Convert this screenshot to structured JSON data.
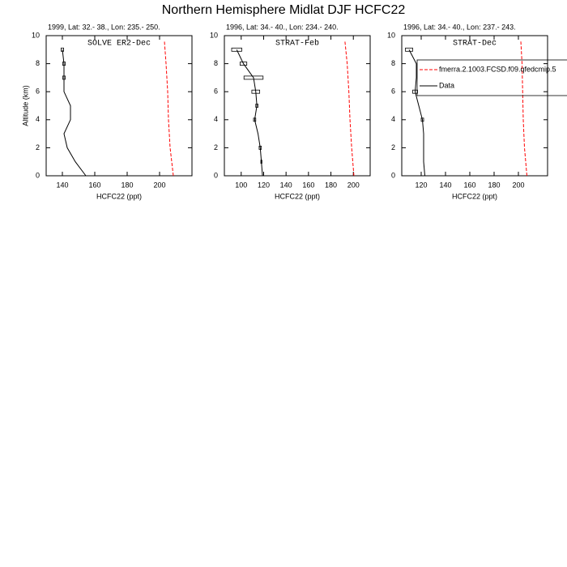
{
  "title": "Northern Hemisphere Midlat DJF HCFC22",
  "chart_data": [
    {
      "type": "profile",
      "subtitle": "1999, Lat: 32.- 38., Lon: 235.- 250.",
      "annotation": "SOLVE ER2-Dec",
      "xlabel": "HCFC22 (ppt)",
      "ylabel": "Altitude (km)",
      "xlim": [
        130,
        220
      ],
      "xticks": [
        140,
        160,
        180,
        200
      ],
      "ylim": [
        0,
        10
      ],
      "yticks": [
        0,
        2,
        4,
        6,
        8,
        10
      ],
      "series": [
        {
          "color": "#ff0000",
          "linestyle": "dashed",
          "altitude": [
            0,
            1,
            2,
            4,
            6,
            8,
            9.6
          ],
          "values": [
            208.5,
            207.5,
            206.5,
            205.5,
            205,
            204,
            203
          ]
        },
        {
          "color": "#000000",
          "linestyle": "solid",
          "altitude": [
            0,
            1,
            2,
            3,
            4,
            5,
            6,
            7,
            8,
            9
          ],
          "values": [
            154.5,
            148,
            143,
            141,
            145,
            145,
            141,
            141,
            141,
            140
          ],
          "errors": [
            null,
            null,
            null,
            null,
            null,
            null,
            null,
            0.8,
            0.8,
            0.8
          ]
        }
      ]
    },
    {
      "type": "profile",
      "subtitle": "1996, Lat: 34.- 40., Lon: 234.- 240.",
      "annotation": "STRAT-Feb",
      "xlabel": "HCFC22 (ppt)",
      "xlim": [
        85,
        215
      ],
      "xticks": [
        100,
        120,
        140,
        160,
        180,
        200
      ],
      "ylim": [
        0,
        10
      ],
      "yticks": [
        0,
        2,
        4,
        6,
        8,
        10
      ],
      "series": [
        {
          "color": "#ff0000",
          "linestyle": "dashed",
          "altitude": [
            0,
            1,
            2,
            4,
            6,
            8,
            9.6
          ],
          "values": [
            200.5,
            199.5,
            198.5,
            197,
            196,
            194.5,
            192.5
          ]
        },
        {
          "color": "#000000",
          "linestyle": "solid",
          "altitude": [
            0,
            1,
            2,
            3,
            4,
            5,
            6,
            7,
            8,
            9
          ],
          "values": [
            119,
            118,
            117,
            115,
            112,
            114,
            113,
            111,
            102,
            96
          ],
          "errors": [
            null,
            0.5,
            1,
            null,
            1,
            1,
            3.5,
            8.5,
            3,
            4.5
          ]
        }
      ]
    },
    {
      "type": "profile",
      "subtitle": "1996, Lat: 34.- 40., Lon: 237.- 243.",
      "annotation": "STRAT-Dec",
      "xlabel": "HCFC22 (ppt)",
      "xlim": [
        104,
        224
      ],
      "xticks": [
        120,
        140,
        160,
        180,
        200
      ],
      "ylim": [
        0,
        10
      ],
      "yticks": [
        0,
        2,
        4,
        6,
        8,
        10
      ],
      "series": [
        {
          "name": "fmerra.2.1003.FCSD.f09.qfedcmip.5",
          "color": "#ff0000",
          "linestyle": "dashed",
          "altitude": [
            0,
            1,
            2,
            4,
            6,
            8,
            9.6
          ],
          "values": [
            207,
            206,
            205,
            204,
            203.5,
            203,
            202
          ]
        },
        {
          "name": "Data",
          "color": "#000000",
          "linestyle": "solid",
          "altitude": [
            0,
            1,
            2,
            3,
            4,
            5,
            6,
            7,
            8,
            9
          ],
          "values": [
            123,
            122,
            122,
            122,
            121,
            118,
            115,
            116,
            116,
            110
          ],
          "errors": [
            null,
            null,
            null,
            null,
            1,
            null,
            2,
            null,
            null,
            3
          ]
        }
      ]
    }
  ]
}
